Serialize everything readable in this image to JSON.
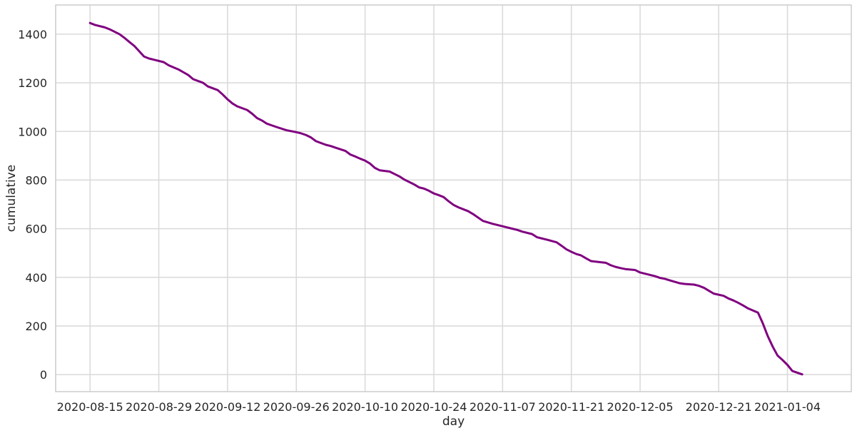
{
  "chart_data": {
    "type": "line",
    "title": "",
    "xlabel": "day",
    "ylabel": "cumulative",
    "x_ticks": [
      "2020-08-15",
      "2020-08-29",
      "2020-09-12",
      "2020-09-26",
      "2020-10-10",
      "2020-10-24",
      "2020-11-07",
      "2020-11-21",
      "2020-12-05",
      "2020-12-21",
      "2021-01-04"
    ],
    "y_ticks": [
      0,
      200,
      400,
      600,
      800,
      1000,
      1200,
      1400
    ],
    "xlim": [
      "2020-08-08",
      "2021-01-17"
    ],
    "ylim": [
      -70,
      1520
    ],
    "grid": true,
    "line_color": "#800080",
    "grid_color": "#d9d9d9",
    "series": [
      {
        "x": [
          "2020-08-15",
          "2020-08-16",
          "2020-08-18",
          "2020-08-19",
          "2020-08-21",
          "2020-08-22",
          "2020-08-23",
          "2020-08-24",
          "2020-08-25",
          "2020-08-26",
          "2020-08-27",
          "2020-08-28",
          "2020-08-30",
          "2020-08-31",
          "2020-09-02",
          "2020-09-04",
          "2020-09-05",
          "2020-09-07",
          "2020-09-08",
          "2020-09-10",
          "2020-09-11",
          "2020-09-12",
          "2020-09-13",
          "2020-09-14",
          "2020-09-16",
          "2020-09-17",
          "2020-09-18",
          "2020-09-19",
          "2020-09-20",
          "2020-09-21",
          "2020-09-22",
          "2020-09-24",
          "2020-09-26",
          "2020-09-27",
          "2020-09-28",
          "2020-09-29",
          "2020-09-30",
          "2020-10-02",
          "2020-10-03",
          "2020-10-04",
          "2020-10-06",
          "2020-10-07",
          "2020-10-08",
          "2020-10-09",
          "2020-10-10",
          "2020-10-11",
          "2020-10-12",
          "2020-10-13",
          "2020-10-15",
          "2020-10-16",
          "2020-10-17",
          "2020-10-18",
          "2020-10-20",
          "2020-10-21",
          "2020-10-22",
          "2020-10-23",
          "2020-10-24",
          "2020-10-25",
          "2020-10-26",
          "2020-10-27",
          "2020-10-28",
          "2020-10-29",
          "2020-10-31",
          "2020-11-01",
          "2020-11-03",
          "2020-11-05",
          "2020-11-07",
          "2020-11-08",
          "2020-11-09",
          "2020-11-10",
          "2020-11-11",
          "2020-11-13",
          "2020-11-14",
          "2020-11-15",
          "2020-11-16",
          "2020-11-18",
          "2020-11-19",
          "2020-11-20",
          "2020-11-21",
          "2020-11-22",
          "2020-11-23",
          "2020-11-24",
          "2020-11-25",
          "2020-11-27",
          "2020-11-28",
          "2020-11-29",
          "2020-11-30",
          "2020-12-01",
          "2020-12-02",
          "2020-12-04",
          "2020-12-05",
          "2020-12-06",
          "2020-12-08",
          "2020-12-09",
          "2020-12-10",
          "2020-12-11",
          "2020-12-13",
          "2020-12-14",
          "2020-12-16",
          "2020-12-17",
          "2020-12-18",
          "2020-12-19",
          "2020-12-20",
          "2020-12-22",
          "2020-12-23",
          "2020-12-24",
          "2020-12-25",
          "2020-12-26",
          "2020-12-27",
          "2020-12-29",
          "2020-12-30",
          "2020-12-31",
          "2021-01-01",
          "2021-01-02",
          "2021-01-03",
          "2021-01-04",
          "2021-01-05",
          "2021-01-07"
        ],
        "values": [
          1446,
          1438,
          1428,
          1420,
          1400,
          1385,
          1368,
          1352,
          1330,
          1308,
          1300,
          1295,
          1285,
          1272,
          1255,
          1232,
          1215,
          1200,
          1185,
          1170,
          1152,
          1132,
          1115,
          1103,
          1088,
          1073,
          1055,
          1045,
          1032,
          1025,
          1018,
          1005,
          997,
          992,
          985,
          975,
          960,
          945,
          940,
          933,
          920,
          905,
          897,
          888,
          880,
          868,
          850,
          840,
          835,
          825,
          815,
          802,
          782,
          770,
          765,
          756,
          745,
          738,
          730,
          713,
          698,
          688,
          672,
          660,
          632,
          620,
          610,
          605,
          600,
          595,
          588,
          578,
          565,
          560,
          555,
          544,
          530,
          515,
          505,
          496,
          490,
          478,
          467,
          462,
          460,
          450,
          443,
          438,
          434,
          430,
          420,
          415,
          405,
          398,
          394,
          388,
          376,
          373,
          370,
          365,
          357,
          345,
          333,
          324,
          313,
          305,
          295,
          284,
          272,
          255,
          210,
          158,
          115,
          78,
          60,
          40,
          15,
          1
        ],
        "color": "#800080"
      }
    ]
  }
}
